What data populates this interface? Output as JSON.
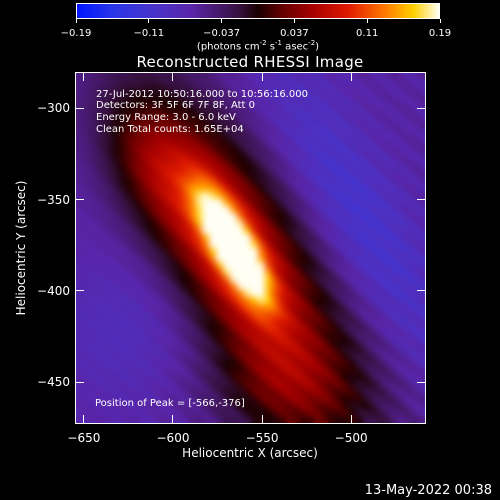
{
  "colorbar": {
    "tick_labels": [
      "-0.19",
      "-0.11",
      "-0.037",
      "0.037",
      "0.11",
      "0.19"
    ],
    "units": [
      "(photons cm",
      "-2",
      " s",
      "-1",
      " asec",
      "-2",
      ")"
    ]
  },
  "title": "Reconstructed RHESSI Image",
  "annotations": {
    "time_range": "27-Jul-2012 10:50:16.000 to 10:56:16.000",
    "detectors": "Detectors: 3F 5F 6F 7F 8F, Att 0",
    "energy": "Energy Range: 3.0 - 6.0 keV",
    "method": "Clean    Total counts: 1.65E+04",
    "peak": "Position of Peak = [-566,-376]"
  },
  "chart_data": {
    "type": "heatmap",
    "title": "Reconstructed RHESSI Image",
    "xlabel": "Heliocentric X (arcsec)",
    "ylabel": "Heliocentric Y (arcsec)",
    "xlim": [
      -655,
      -458
    ],
    "ylim": [
      -473,
      -280
    ],
    "x_ticks": [
      -650,
      -600,
      -550,
      -500
    ],
    "x_tick_labels": [
      "-650",
      "-600",
      "-550",
      "-500"
    ],
    "y_ticks": [
      -300,
      -350,
      -400,
      -450
    ],
    "y_tick_labels": [
      "-300",
      "-350",
      "-400",
      "-450"
    ],
    "colorbar_range": [
      -0.19,
      0.19
    ],
    "peak_position": [
      -566,
      -376
    ],
    "colormap": "blue-purple-black-red-yellow-white"
  },
  "footer": {
    "timestamp": "13-May-2022 00:38"
  }
}
